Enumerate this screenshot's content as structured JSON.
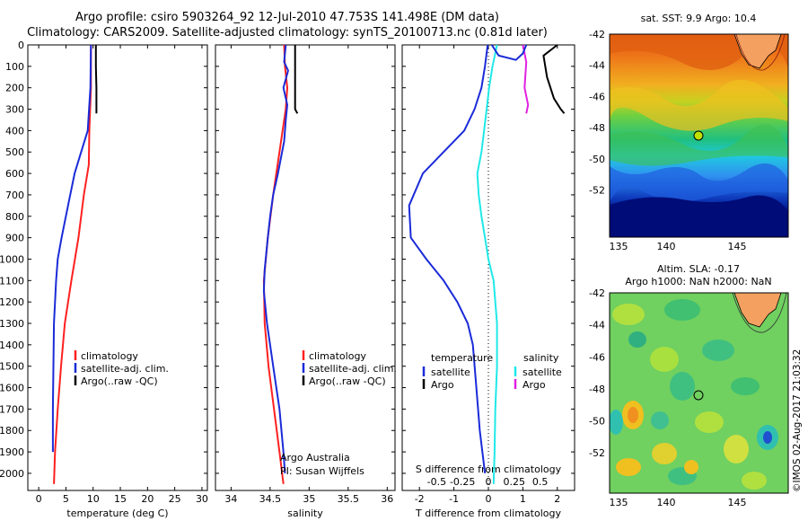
{
  "title_line1": "Argo profile: csiro 5903264_92 12-Jul-2010 47.753S 141.498E (DM data)",
  "title_line2": "Climatology: CARS2009. Satellite-adjusted climatology: synTS_20100713.nc (0.81d later)",
  "timestamp": "©IMOS 02-Aug-2017 21:03:32",
  "colors": {
    "climatology": "#ff2020",
    "satellite": "#1a2bd8",
    "argo": "#000000",
    "cyan": "#20e8e8",
    "magenta": "#e020e0"
  },
  "chart_data": [
    {
      "type": "line",
      "id": "temperature",
      "xlabel": "temperature (deg C)",
      "ylabel": "",
      "xlim": [
        -2,
        31
      ],
      "ylim": [
        2080,
        0
      ],
      "xticks": [
        0,
        5,
        10,
        15,
        20,
        25,
        30
      ],
      "yticks": [
        0,
        100,
        200,
        300,
        400,
        500,
        600,
        700,
        800,
        900,
        1000,
        1100,
        1200,
        1300,
        1400,
        1500,
        1600,
        1700,
        1800,
        1900,
        2000
      ],
      "legend": [
        "climatology",
        "satellite-adj. clim.",
        "Argo(..raw -QC)"
      ],
      "series": [
        {
          "name": "climatology",
          "color": "red",
          "points": [
            [
              9.6,
              0
            ],
            [
              9.6,
              200
            ],
            [
              9.3,
              400
            ],
            [
              9.2,
              560
            ],
            [
              8.3,
              700
            ],
            [
              7.3,
              900
            ],
            [
              6.0,
              1100
            ],
            [
              4.8,
              1300
            ],
            [
              4.1,
              1500
            ],
            [
              3.5,
              1700
            ],
            [
              3.0,
              1900
            ],
            [
              2.8,
              2050
            ]
          ]
        },
        {
          "name": "satellite-adj. clim.",
          "color": "blue",
          "points": [
            [
              9.6,
              0
            ],
            [
              9.5,
              200
            ],
            [
              9.0,
              400
            ],
            [
              7.8,
              500
            ],
            [
              6.6,
              600
            ],
            [
              5.4,
              750
            ],
            [
              4.2,
              900
            ],
            [
              3.5,
              1000
            ],
            [
              3.2,
              1100
            ],
            [
              2.8,
              1300
            ],
            [
              2.7,
              1500
            ],
            [
              2.6,
              1700
            ],
            [
              2.6,
              1900
            ]
          ]
        },
        {
          "name": "Argo(..raw -QC)",
          "color": "black",
          "points": [
            [
              10.5,
              0
            ],
            [
              10.5,
              100
            ],
            [
              10.6,
              200
            ],
            [
              10.6,
              320
            ]
          ]
        }
      ]
    },
    {
      "type": "line",
      "id": "salinity",
      "xlabel": "salinity",
      "ylabel": "",
      "xlim": [
        33.8,
        36.1
      ],
      "ylim": [
        2080,
        0
      ],
      "xticks": [
        34,
        34.5,
        35,
        35.5,
        36
      ],
      "legend": [
        "climatology",
        "satellite-adj. clim.",
        "Argo(..raw -QC)"
      ],
      "annotation": [
        "Argo Australia",
        "PI: Susan Wijffels"
      ],
      "series": [
        {
          "name": "climatology",
          "color": "red",
          "points": [
            [
              34.68,
              0
            ],
            [
              34.69,
              100
            ],
            [
              34.72,
              200
            ],
            [
              34.7,
              300
            ],
            [
              34.62,
              500
            ],
            [
              34.54,
              700
            ],
            [
              34.47,
              900
            ],
            [
              34.42,
              1100
            ],
            [
              34.43,
              1300
            ],
            [
              34.48,
              1500
            ],
            [
              34.55,
              1700
            ],
            [
              34.62,
              1900
            ],
            [
              34.67,
              2050
            ]
          ]
        },
        {
          "name": "satellite-adj. clim.",
          "color": "blue",
          "points": [
            [
              34.7,
              0
            ],
            [
              34.68,
              80
            ],
            [
              34.73,
              120
            ],
            [
              34.67,
              200
            ],
            [
              34.72,
              280
            ],
            [
              34.7,
              350
            ],
            [
              34.68,
              450
            ],
            [
              34.6,
              600
            ],
            [
              34.54,
              700
            ],
            [
              34.5,
              800
            ],
            [
              34.47,
              900
            ],
            [
              34.43,
              1050
            ],
            [
              34.42,
              1150
            ],
            [
              34.46,
              1300
            ],
            [
              34.54,
              1500
            ],
            [
              34.62,
              1700
            ],
            [
              34.67,
              1900
            ],
            [
              34.69,
              2000
            ]
          ]
        },
        {
          "name": "Argo(..raw -QC)",
          "color": "black",
          "points": [
            [
              34.82,
              0
            ],
            [
              34.82,
              150
            ],
            [
              34.82,
              300
            ],
            [
              34.85,
              320
            ]
          ]
        }
      ]
    },
    {
      "type": "line",
      "id": "difference",
      "xlabel": "T difference from climatology",
      "top_xlabel": "S difference from climatology",
      "xlim": [
        -2.5,
        2.5
      ],
      "ylim": [
        2080,
        0
      ],
      "xticks": [
        -2,
        -1,
        0,
        1,
        2
      ],
      "top_xticks": [
        "-0.5",
        "-0.25",
        "0",
        "0.25",
        "0.5"
      ],
      "legend_headers": [
        "temperature",
        "salinity"
      ],
      "legend": [
        "satellite",
        "Argo",
        "satellite",
        "Argo"
      ],
      "series": [
        {
          "name": "temperature satellite",
          "color": "blue",
          "points": [
            [
              -0.02,
              0
            ],
            [
              -0.1,
              100
            ],
            [
              -0.2,
              200
            ],
            [
              -0.4,
              300
            ],
            [
              -0.7,
              400
            ],
            [
              -1.3,
              500
            ],
            [
              -1.9,
              600
            ],
            [
              -2.3,
              750
            ],
            [
              -2.25,
              900
            ],
            [
              -1.8,
              1000
            ],
            [
              -1.3,
              1100
            ],
            [
              -0.9,
              1200
            ],
            [
              -0.6,
              1300
            ],
            [
              -0.45,
              1400
            ],
            [
              -0.35,
              1600
            ],
            [
              -0.25,
              1800
            ],
            [
              -0.1,
              2000
            ]
          ]
        },
        {
          "name": "S satellite",
          "color": "cyan",
          "points": [
            [
              0.25,
              0
            ],
            [
              0.12,
              100
            ],
            [
              0.02,
              200
            ],
            [
              -0.05,
              300
            ],
            [
              -0.2,
              500
            ],
            [
              -0.32,
              600
            ],
            [
              -0.28,
              700
            ],
            [
              -0.2,
              800
            ],
            [
              -0.1,
              900
            ],
            [
              0.0,
              1000
            ],
            [
              0.15,
              1100
            ],
            [
              0.25,
              1300
            ],
            [
              0.25,
              1500
            ],
            [
              0.2,
              1700
            ],
            [
              0.18,
              1900
            ],
            [
              0.15,
              2050
            ]
          ]
        },
        {
          "name": "temperature Argo",
          "color": "black",
          "points": [
            [
              2.0,
              0
            ],
            [
              1.6,
              50
            ],
            [
              1.7,
              150
            ],
            [
              1.9,
              250
            ],
            [
              2.1,
              300
            ],
            [
              2.2,
              320
            ]
          ]
        },
        {
          "name": "S Argo",
          "color": "magenta",
          "points": [
            [
              1.0,
              0
            ],
            [
              1.1,
              80
            ],
            [
              1.05,
              200
            ],
            [
              1.15,
              280
            ],
            [
              1.1,
              320
            ]
          ]
        },
        {
          "name": "temperature Argo top",
          "color": "blue",
          "points": [
            [
              0.1,
              0
            ],
            [
              0.3,
              50
            ],
            [
              0.8,
              70
            ],
            [
              1.0,
              40
            ],
            [
              1.1,
              0
            ]
          ]
        }
      ]
    }
  ],
  "maps": [
    {
      "id": "sst",
      "title": "sat. SST: 9.9 Argo: 10.4",
      "xticks": [
        "135",
        "140",
        "145"
      ],
      "yticks": [
        "-42",
        "-44",
        "-46",
        "-48",
        "-50",
        "-52"
      ]
    },
    {
      "id": "sla",
      "title_line1": "Altim. SLA: -0.17",
      "title_line2": "Argo h1000: NaN h2000: NaN",
      "xticks": [
        "135",
        "140",
        "145"
      ],
      "yticks": [
        "-42",
        "-44",
        "-46",
        "-48",
        "-50",
        "-52"
      ]
    }
  ]
}
